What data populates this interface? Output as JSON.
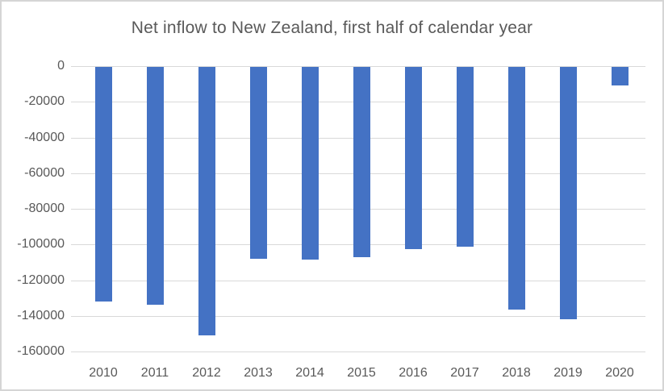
{
  "chart_data": {
    "type": "bar",
    "title": "Net inflow to New Zealand, first half of calendar year",
    "categories": [
      "2010",
      "2011",
      "2012",
      "2013",
      "2014",
      "2015",
      "2016",
      "2017",
      "2018",
      "2019",
      "2020"
    ],
    "values": [
      -131500,
      -133500,
      -150500,
      -107500,
      -108000,
      -106500,
      -102000,
      -101000,
      -136000,
      -141500,
      -10500
    ],
    "xlabel": "",
    "ylabel": "",
    "ylim": [
      -160000,
      0
    ],
    "ytick_values": [
      0,
      -20000,
      -40000,
      -60000,
      -80000,
      -100000,
      -120000,
      -140000,
      -160000
    ],
    "ytick_labels": [
      "0",
      "-20000",
      "-40000",
      "-60000",
      "-80000",
      "-100000",
      "-120000",
      "-140000",
      "-160000"
    ],
    "grid": true,
    "legend": false,
    "bar_color": "#4472C4",
    "gridline_color": "#D9D9D9",
    "text_color": "#595959",
    "frame_border_color": "#D5D5D5",
    "background_color": "#FFFFFF"
  }
}
